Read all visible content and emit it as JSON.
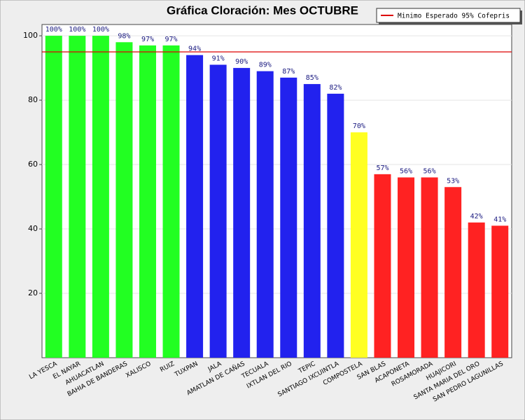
{
  "chart_data": {
    "type": "bar",
    "title": "Gráfica Cloración: Mes OCTUBRE",
    "categories": [
      "LA YESCA",
      "EL NAYAR",
      "AHUACATLAN",
      "BAHIA DE BANDERAS",
      "XALISCO",
      "RUIZ",
      "TUXPAN",
      "JALA",
      "AMATLAN DE CAÑAS",
      "TECUALA",
      "IXTLAN DEL RIO",
      "TEPIC",
      "SANTIAGO IXCUINTLA",
      "COMPOSTELA",
      "SAN BLAS",
      "ACAPONETA",
      "ROSAMORADA",
      "HUAJICORI",
      "SANTA MARIA DEL ORO",
      "SAN PEDRO LAGUNILLAS"
    ],
    "values": [
      100,
      100,
      100,
      98,
      97,
      97,
      94,
      91,
      90,
      89,
      87,
      85,
      82,
      70,
      57,
      56,
      56,
      53,
      42,
      41
    ],
    "value_labels": [
      "100%",
      "100%",
      "100%",
      "98%",
      "97%",
      "97%",
      "94%",
      "91%",
      "90%",
      "89%",
      "87%",
      "85%",
      "82%",
      "70%",
      "57%",
      "56%",
      "56%",
      "53%",
      "42%",
      "41%"
    ],
    "colors": [
      "#22ff22",
      "#22ff22",
      "#22ff22",
      "#22ff22",
      "#22ff22",
      "#22ff22",
      "#2222ee",
      "#2222ee",
      "#2222ee",
      "#2222ee",
      "#2222ee",
      "#2222ee",
      "#2222ee",
      "#ffff22",
      "#ff2222",
      "#ff2222",
      "#ff2222",
      "#ff2222",
      "#ff2222",
      "#ff2222"
    ],
    "ylim": [
      0,
      103.5
    ],
    "yticks": [
      20,
      40,
      60,
      80,
      100
    ],
    "grid": true,
    "reference_line": {
      "value": 95,
      "label": "Minimo Esperado 95% Cofepris",
      "color": "#dd0000"
    },
    "legend_position": "top-right"
  }
}
